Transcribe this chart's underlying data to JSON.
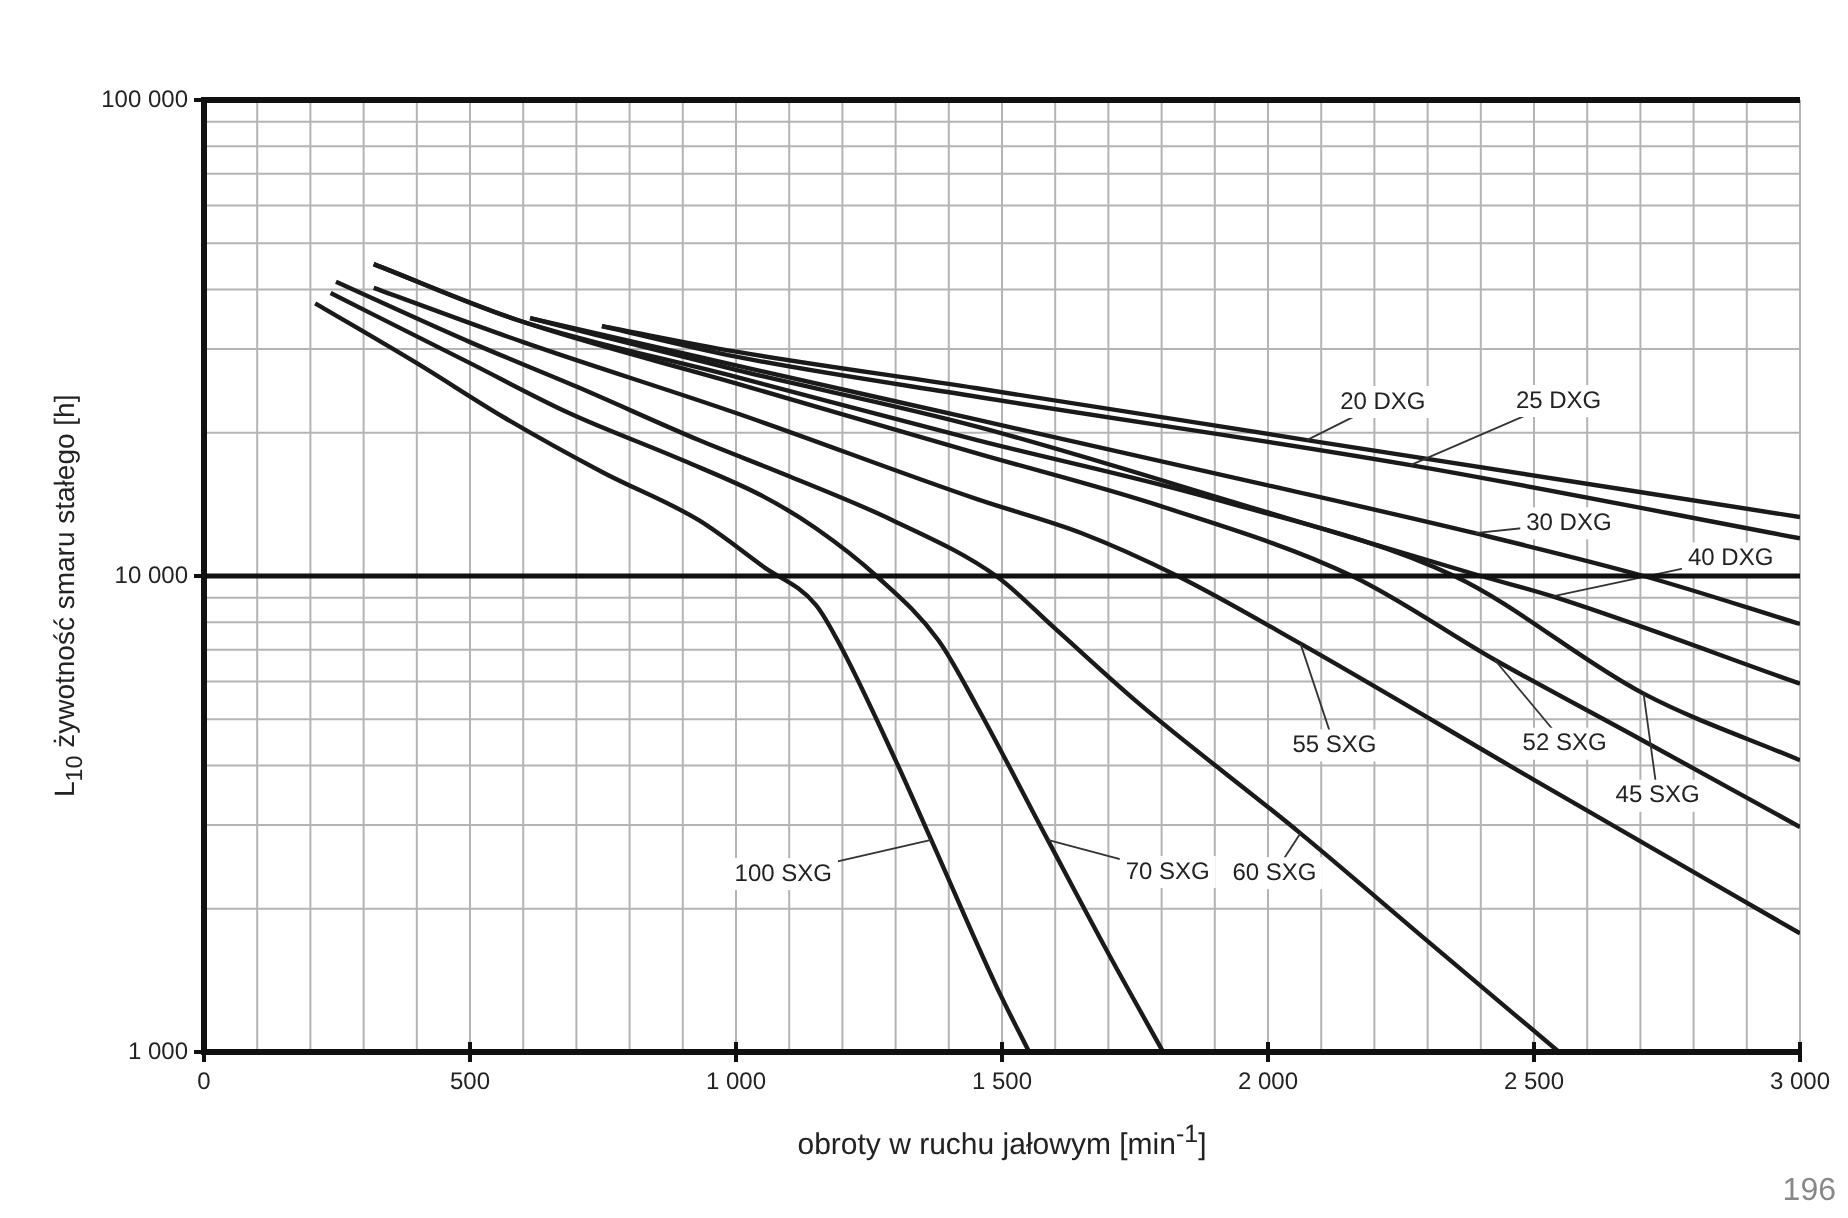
{
  "chart_data": {
    "type": "line",
    "xlabel": "obroty w ruchu jałowym [min$^{-1}$]",
    "ylabel": "L$_{10}$ żywotność smaru stałego  [h]",
    "log": "y",
    "grid": true,
    "xlim": [
      0,
      3000
    ],
    "xticks": [
      0,
      500,
      {
        "value": 1000,
        "label": "1 000"
      },
      {
        "value": 1500,
        "label": "1 500"
      },
      {
        "value": 2000,
        "label": "2 000"
      },
      {
        "value": 2500,
        "label": "2 500"
      },
      {
        "value": 3000,
        "label": "3 000"
      }
    ],
    "ylim": [
      1000,
      100000
    ],
    "yticks": [
      {
        "value": 1000,
        "label": "1 000"
      },
      {
        "value": 10000,
        "label": "10 000"
      },
      {
        "value": 100000,
        "label": "100 000"
      }
    ],
    "ref_lines": [
      {
        "axis": "y",
        "value": 10000,
        "color": "#111111"
      }
    ],
    "series": [
      {
        "color": "#1a1a1a",
        "x": [
          748,
          1000,
          1453,
          2073,
          3000
        ],
        "values": [
          33500,
          29600,
          24800,
          19300,
          13300
        ]
      },
      {
        "color": "#1a1a1a",
        "x": [
          748,
          1000,
          1453,
          2268,
          3000
        ],
        "values": [
          33500,
          28900,
          23800,
          17100,
          12000
        ]
      },
      {
        "color": "#1a1a1a",
        "x": [
          613,
          1000,
          1453,
          2000,
          2389,
          2706,
          3000
        ],
        "values": [
          34800,
          27700,
          21300,
          15500,
          12300,
          10000,
          7930
        ]
      },
      {
        "color": "#1a1a1a",
        "x": [
          613,
          1000,
          1453,
          2000,
          2400,
          2535,
          3000
        ],
        "values": [
          34800,
          27100,
          20600,
          13600,
          10000,
          9060,
          5940
        ]
      },
      {
        "color": "#1a1a1a",
        "x": [
          319,
          589,
          1000,
          1453,
          1900,
          2350,
          2706,
          3000
        ],
        "values": [
          45200,
          34500,
          26200,
          19300,
          14500,
          10000,
          5660,
          4100
        ]
      },
      {
        "color": "#1a1a1a",
        "x": [
          319,
          589,
          1000,
          1453,
          1800,
          2158,
          2426,
          2700,
          3000
        ],
        "values": [
          45200,
          34500,
          25400,
          18100,
          14000,
          10000,
          6670,
          4540,
          2970
        ]
      },
      {
        "color": "#1a1a1a",
        "x": [
          319,
          600,
          1000,
          1453,
          1650,
          1830,
          2061,
          2500,
          3000
        ],
        "values": [
          40300,
          31000,
          22000,
          14500,
          12300,
          10000,
          7210,
          3730,
          1775
        ]
      },
      {
        "color": "#1a1a1a",
        "x": [
          248,
          500,
          700,
          930,
          1100,
          1294,
          1489,
          1600,
          1757,
          2061,
          2300,
          2547
        ],
        "values": [
          41500,
          31000,
          25000,
          19300,
          16200,
          13100,
          10000,
          7750,
          5400,
          2880,
          1710,
          1000
        ]
      },
      {
        "color": "#1a1a1a",
        "x": [
          238,
          500,
          686,
          900,
          1051,
          1150,
          1264,
          1380,
          1453,
          1586,
          1700,
          1803
        ],
        "values": [
          39300,
          28000,
          22000,
          17500,
          14700,
          12600,
          10000,
          7340,
          5320,
          2790,
          1610,
          1000
        ]
      },
      {
        "color": "#1a1a1a",
        "x": [
          209,
          400,
          565,
          750,
          930,
          1051,
          1150,
          1197,
          1300,
          1367,
          1489,
          1551
        ],
        "values": [
          37400,
          28000,
          21500,
          16500,
          13100,
          10470,
          8700,
          7110,
          4100,
          2790,
          1377,
          1000
        ]
      }
    ],
    "annotations": [
      {
        "text": "20 DXG",
        "x": 2073,
        "y": 19300
      },
      {
        "text": "25 DXG",
        "x": 2268,
        "y": 17100
      },
      {
        "text": "30 DXG",
        "x": 2389,
        "y": 12300
      },
      {
        "text": "40 DXG",
        "x": 2535,
        "y": 9060
      },
      {
        "text": "45 SXG",
        "x": 2706,
        "y": 5660
      },
      {
        "text": "52 SXG",
        "x": 2426,
        "y": 6670
      },
      {
        "text": "55 SXG",
        "x": 2061,
        "y": 7210
      },
      {
        "text": "60 SXG",
        "x": 2061,
        "y": 2880
      },
      {
        "text": "70 SXG",
        "x": 1586,
        "y": 2790
      },
      {
        "text": "100 SXG",
        "x": 1367,
        "y": 2790
      },
      "196"
    ]
  }
}
